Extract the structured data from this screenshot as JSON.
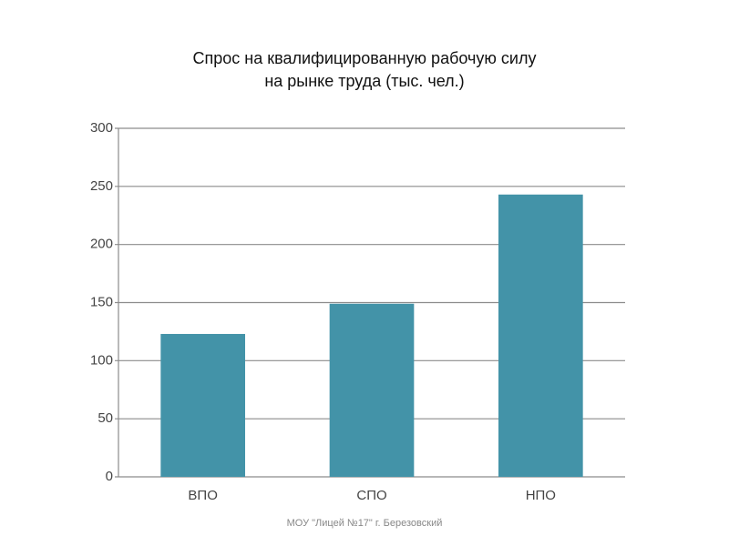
{
  "chart_data": {
    "type": "bar",
    "title": [
      "Спрос на квалифицированную рабочую силу",
      "на рынке труда (тыс. чел.)"
    ],
    "categories": [
      "ВПО",
      "СПО",
      "НПО"
    ],
    "values": [
      123,
      149,
      243
    ],
    "color": "#4393a8",
    "ylim": [
      0,
      300
    ],
    "yticks": [
      0,
      50,
      100,
      150,
      200,
      250,
      300
    ],
    "grid": true
  },
  "footer": "МОУ \"Лицей №17\" г. Березовский"
}
